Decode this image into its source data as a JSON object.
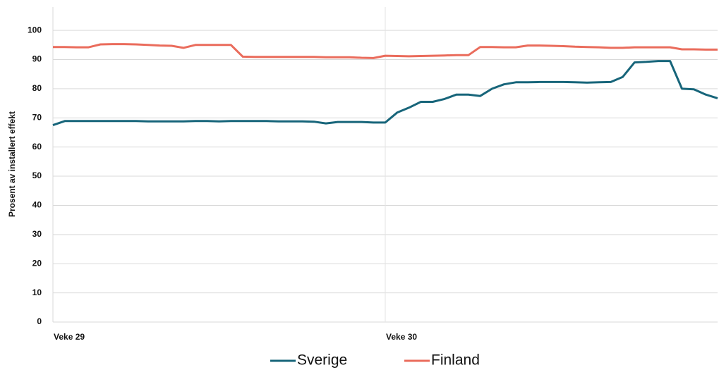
{
  "chart_data": {
    "type": "line",
    "y_label": "Prosent av installert effekt",
    "categories": [
      "Veke 29",
      null,
      null,
      null,
      null,
      null,
      null,
      null,
      null,
      null,
      null,
      null,
      null,
      null,
      null,
      null,
      null,
      null,
      null,
      null,
      null,
      null,
      null,
      null,
      null,
      null,
      null,
      null,
      "Veke 30",
      null,
      null,
      null,
      null,
      null,
      null,
      null,
      null,
      null,
      null,
      null,
      null,
      null,
      null,
      null,
      null,
      null,
      null,
      null,
      null,
      null,
      null,
      null,
      null,
      null,
      null,
      null,
      null
    ],
    "series": [
      {
        "name": "Sverige",
        "color": "#17657a",
        "values": [
          67.5,
          68.9,
          68.9,
          68.9,
          68.9,
          68.9,
          68.9,
          68.9,
          68.8,
          68.8,
          68.8,
          68.8,
          68.9,
          68.9,
          68.8,
          68.9,
          68.9,
          68.9,
          68.9,
          68.8,
          68.8,
          68.8,
          68.7,
          68.1,
          68.6,
          68.6,
          68.6,
          68.4,
          68.4,
          71.8,
          73.5,
          75.5,
          75.5,
          76.5,
          78,
          78,
          77.5,
          80,
          81.5,
          82.2,
          82.2,
          82.3,
          82.3,
          82.3,
          82.2,
          82.1,
          82.2,
          82.3,
          84,
          89,
          89.2,
          89.5,
          89.5,
          80,
          79.8,
          78,
          76.7
        ]
      },
      {
        "name": "Finland",
        "color": "#ea6c5c",
        "values": [
          94.3,
          94.3,
          94.2,
          94.2,
          95.2,
          95.3,
          95.3,
          95.2,
          95,
          94.8,
          94.7,
          94,
          95,
          95,
          95,
          95,
          91,
          90.9,
          90.9,
          90.9,
          90.9,
          90.9,
          90.9,
          90.8,
          90.8,
          90.8,
          90.6,
          90.5,
          91.3,
          91.2,
          91.1,
          91.2,
          91.3,
          91.4,
          91.5,
          91.5,
          94.3,
          94.3,
          94.2,
          94.2,
          94.8,
          94.8,
          94.7,
          94.6,
          94.4,
          94.3,
          94.2,
          94,
          94,
          94.2,
          94.2,
          94.2,
          94.2,
          93.5,
          93.5,
          93.4,
          93.4
        ]
      }
    ],
    "ylim": [
      0,
      108
    ],
    "yticks": [
      0,
      10,
      20,
      30,
      40,
      50,
      60,
      70,
      80,
      90,
      100
    ],
    "grid": true,
    "legend": "bottom"
  }
}
